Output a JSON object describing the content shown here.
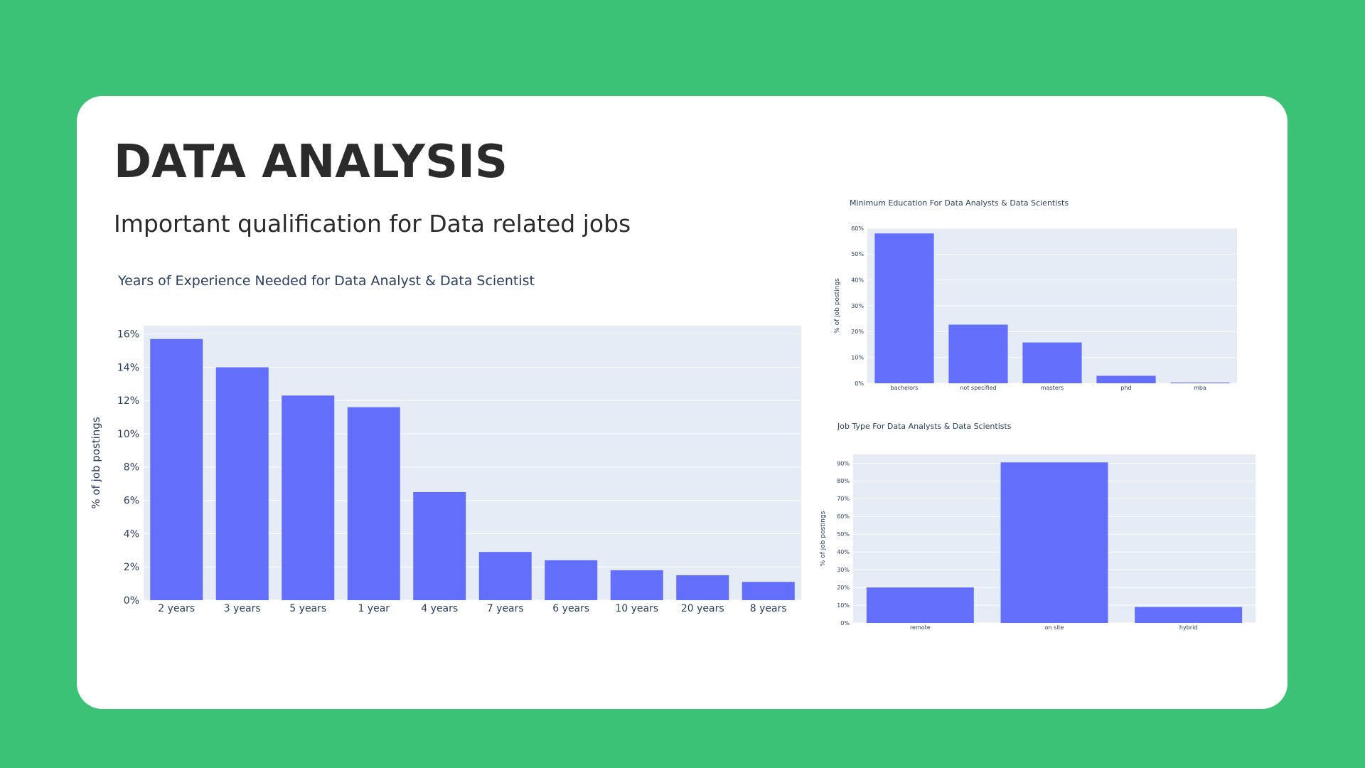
{
  "header": {
    "title": "DATA ANALYSIS",
    "subtitle": "Important qualification for Data related jobs"
  },
  "colors": {
    "background": "#3cc276",
    "card": "#ffffff",
    "plot_bg": "#e5ecf6",
    "bar": "#636efa",
    "text": "#2a3f5f"
  },
  "chart_data": [
    {
      "type": "bar",
      "title": "Years of Experience Needed for Data Analyst & Data Scientist",
      "xlabel": "",
      "ylabel": "% of job postings",
      "categories": [
        "2 years",
        "3 years",
        "5 years",
        "1 year",
        "4 years",
        "7 years",
        "6 years",
        "10 years",
        "20 years",
        "8 years"
      ],
      "values": [
        15.7,
        14.0,
        12.3,
        11.6,
        6.5,
        2.9,
        2.4,
        1.8,
        1.5,
        1.1
      ],
      "ylim": [
        0,
        16.5
      ],
      "yticks": [
        0,
        2,
        4,
        6,
        8,
        10,
        12,
        14,
        16
      ],
      "ytick_labels": [
        "0%",
        "2%",
        "4%",
        "6%",
        "8%",
        "10%",
        "12%",
        "14%",
        "16%"
      ],
      "grid": true
    },
    {
      "type": "bar",
      "title": "Minimum Education For Data Analysts & Data Scientists",
      "xlabel": "",
      "ylabel": "% of job postings",
      "categories": [
        "bachelors",
        "not specified",
        "masters",
        "phd",
        "mba"
      ],
      "values": [
        58,
        22.7,
        15.8,
        2.9,
        0.3
      ],
      "ylim": [
        0,
        60
      ],
      "yticks": [
        0,
        10,
        20,
        30,
        40,
        50,
        60
      ],
      "ytick_labels": [
        "0%",
        "10%",
        "20%",
        "30%",
        "40%",
        "50%",
        "60%"
      ],
      "grid": true
    },
    {
      "type": "bar",
      "title": "Job Type For Data Analysts & Data Scientists",
      "xlabel": "",
      "ylabel": "% of job postings",
      "categories": [
        "remote",
        "on site",
        "hybrid"
      ],
      "values": [
        20,
        90.5,
        9
      ],
      "ylim": [
        0,
        95
      ],
      "yticks": [
        0,
        10,
        20,
        30,
        40,
        50,
        60,
        70,
        80,
        90
      ],
      "ytick_labels": [
        "0%",
        "10%",
        "20%",
        "30%",
        "40%",
        "50%",
        "60%",
        "70%",
        "80%",
        "90%"
      ],
      "grid": true
    }
  ]
}
